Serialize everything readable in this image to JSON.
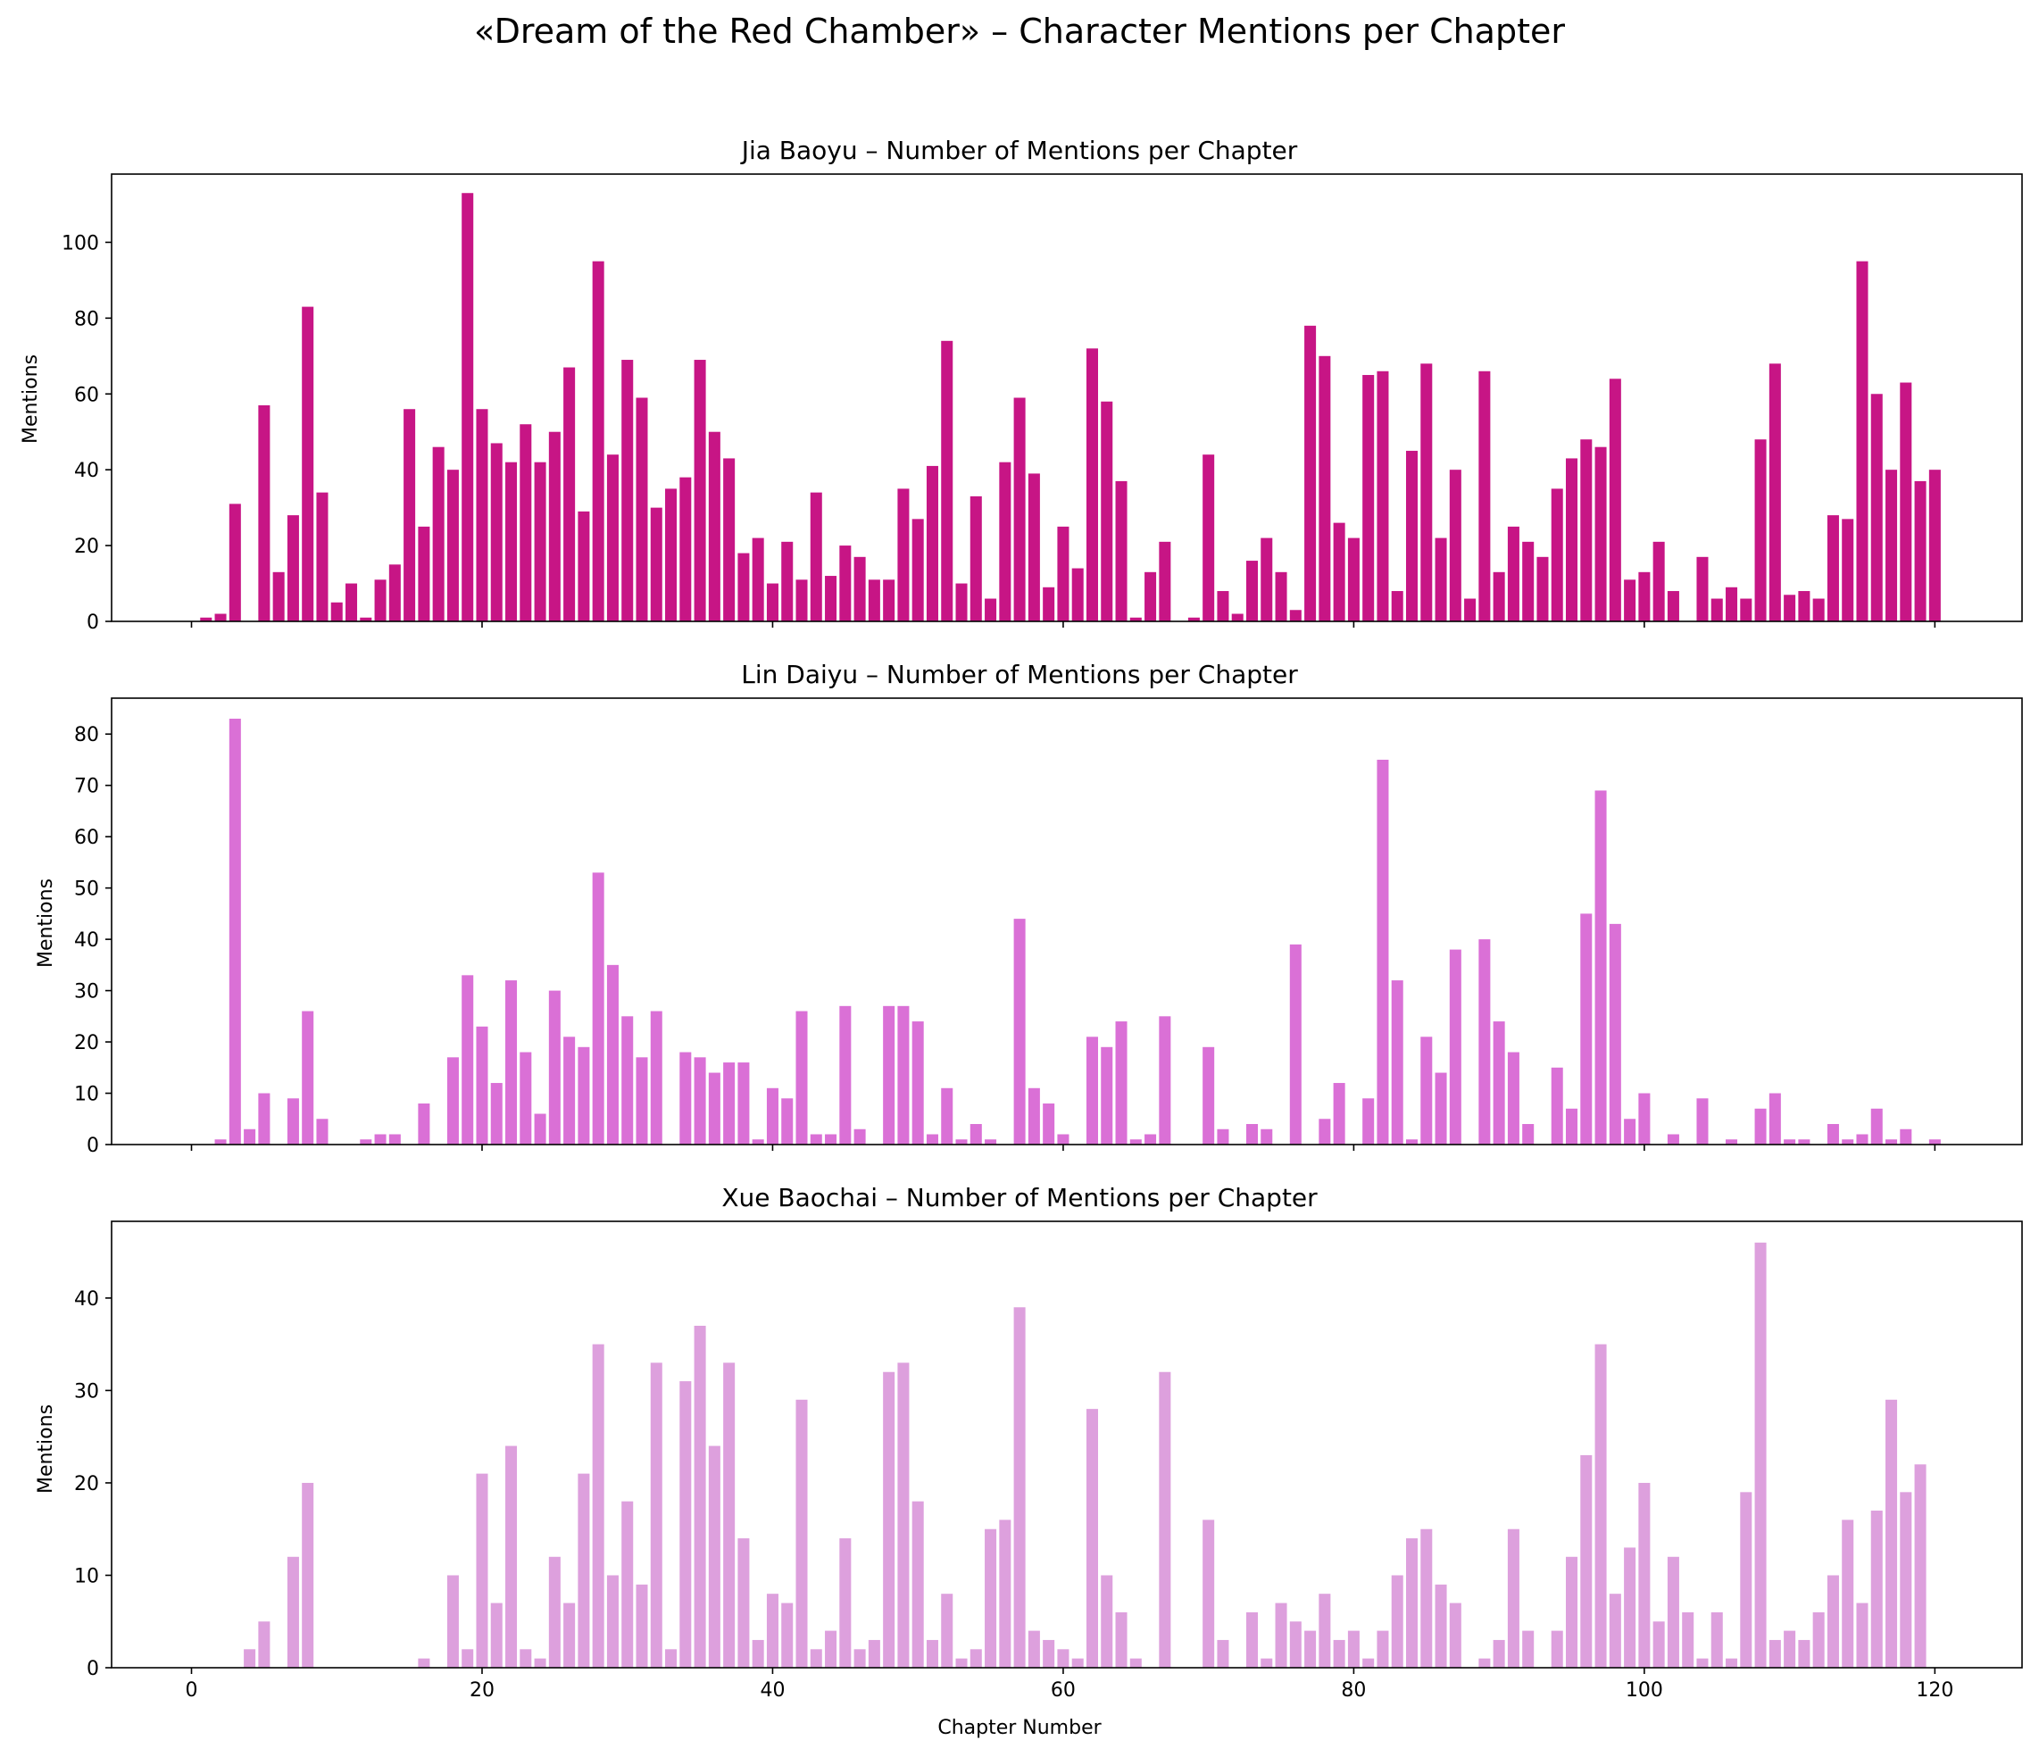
{
  "suptitle": "«Dream of the Red Chamber» – Character Mentions per Chapter",
  "chart_data": [
    {
      "type": "bar",
      "title": "Jia Baoyu – Number of Mentions per Chapter",
      "xlabel": "",
      "ylabel": "Mentions",
      "color": "#c71585",
      "xlim": [
        -5.5,
        126
      ],
      "ylim": [
        0,
        118
      ],
      "xticks": [
        0,
        20,
        40,
        60,
        80,
        100,
        120
      ],
      "yticks": [
        0,
        20,
        40,
        60,
        80,
        100
      ],
      "x_start": 1,
      "values": [
        1,
        2,
        31,
        0,
        57,
        13,
        28,
        83,
        34,
        5,
        10,
        1,
        11,
        15,
        56,
        25,
        46,
        40,
        113,
        56,
        47,
        42,
        52,
        42,
        50,
        67,
        29,
        95,
        44,
        69,
        59,
        30,
        35,
        38,
        69,
        50,
        43,
        18,
        22,
        10,
        21,
        11,
        34,
        12,
        20,
        17,
        11,
        11,
        35,
        27,
        41,
        74,
        10,
        33,
        6,
        42,
        59,
        39,
        9,
        25,
        14,
        72,
        58,
        37,
        1,
        13,
        21,
        0,
        1,
        44,
        8,
        2,
        16,
        22,
        13,
        3,
        78,
        70,
        26,
        22,
        65,
        66,
        8,
        45,
        68,
        22,
        40,
        6,
        66,
        13,
        25,
        21,
        17,
        35,
        43,
        48,
        46,
        64,
        11,
        13,
        21,
        8,
        0,
        17,
        6,
        9,
        6,
        48,
        68,
        7,
        8,
        6,
        28,
        27,
        95,
        60,
        40,
        63,
        37,
        40
      ]
    },
    {
      "type": "bar",
      "title": "Lin Daiyu – Number of Mentions per Chapter",
      "xlabel": "",
      "ylabel": "Mentions",
      "color": "#da70d6",
      "xlim": [
        -5.5,
        126
      ],
      "ylim": [
        0,
        87
      ],
      "xticks": [
        0,
        20,
        40,
        60,
        80,
        100,
        120
      ],
      "yticks": [
        0,
        10,
        20,
        30,
        40,
        50,
        60,
        70,
        80
      ],
      "x_start": 1,
      "values": [
        0,
        1,
        83,
        3,
        10,
        0,
        9,
        26,
        5,
        0,
        0,
        1,
        2,
        2,
        0,
        8,
        0,
        17,
        33,
        23,
        12,
        32,
        18,
        6,
        30,
        21,
        19,
        53,
        35,
        25,
        17,
        26,
        0,
        18,
        17,
        14,
        16,
        16,
        1,
        11,
        9,
        26,
        2,
        2,
        27,
        3,
        0,
        27,
        27,
        24,
        2,
        11,
        1,
        4,
        1,
        0,
        44,
        11,
        8,
        2,
        0,
        21,
        19,
        24,
        1,
        2,
        25,
        0,
        0,
        19,
        3,
        0,
        4,
        3,
        0,
        39,
        0,
        5,
        12,
        0,
        9,
        75,
        32,
        1,
        21,
        14,
        38,
        0,
        40,
        24,
        18,
        4,
        0,
        15,
        7,
        45,
        69,
        43,
        5,
        10,
        0,
        2,
        0,
        9,
        0,
        1,
        0,
        7,
        10,
        1,
        1,
        0,
        4,
        1,
        2,
        7,
        1,
        3,
        0,
        1
      ]
    },
    {
      "type": "bar",
      "title": "Xue Baochai – Number of Mentions per Chapter",
      "xlabel": "Chapter Number",
      "ylabel": "Mentions",
      "color": "#dda0dd",
      "xlim": [
        -5.5,
        126
      ],
      "ylim": [
        0,
        48.3
      ],
      "xticks": [
        0,
        20,
        40,
        60,
        80,
        100,
        120
      ],
      "yticks": [
        0,
        10,
        20,
        30,
        40
      ],
      "x_start": 1,
      "values": [
        0,
        0,
        0,
        2,
        5,
        0,
        12,
        20,
        0,
        0,
        0,
        0,
        0,
        0,
        0,
        1,
        0,
        10,
        2,
        21,
        7,
        24,
        2,
        1,
        12,
        7,
        21,
        35,
        10,
        18,
        9,
        33,
        2,
        31,
        37,
        24,
        33,
        14,
        3,
        8,
        7,
        29,
        2,
        4,
        14,
        2,
        3,
        32,
        33,
        18,
        3,
        8,
        1,
        2,
        15,
        16,
        39,
        4,
        3,
        2,
        1,
        28,
        10,
        6,
        1,
        0,
        32,
        0,
        0,
        16,
        3,
        0,
        6,
        1,
        7,
        5,
        4,
        8,
        3,
        4,
        1,
        4,
        10,
        14,
        15,
        9,
        7,
        0,
        1,
        3,
        15,
        4,
        0,
        4,
        12,
        23,
        35,
        8,
        13,
        20,
        5,
        12,
        6,
        1,
        6,
        1,
        19,
        46,
        3,
        4,
        3,
        6,
        10,
        16,
        7,
        17,
        29,
        19,
        22
      ]
    }
  ]
}
